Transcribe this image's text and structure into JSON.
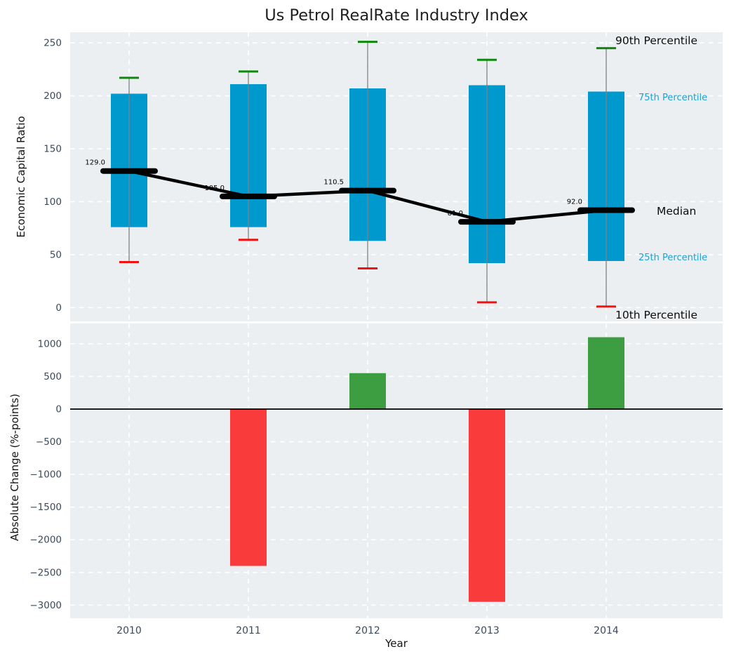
{
  "title": "Us Petrol RealRate Industry Index",
  "colors": {
    "figure_bg": "#ffffff",
    "panel_bg": "#eceff1",
    "grid": "#ffffff",
    "box_fill": "#0099cd",
    "whisker": "#808080",
    "cap_top": "#0b8a0b",
    "cap_bottom": "#f21212",
    "median": "#000000",
    "bar_positive": "#3d9e41",
    "bar_negative": "#fa3b3b",
    "tick_label": "#3b4a5c",
    "accent_label": "#1ba2d4",
    "zero_line": "#000000"
  },
  "chart_data": [
    {
      "type": "boxplot",
      "title": "Us Petrol RealRate Industry Index",
      "ylabel": "Economic Capital Ratio",
      "categories": [
        "2010",
        "2011",
        "2012",
        "2013",
        "2014"
      ],
      "series": [
        {
          "name": "90th Percentile",
          "values": [
            217,
            223,
            251,
            234,
            245
          ]
        },
        {
          "name": "75th Percentile",
          "values": [
            202,
            211,
            207,
            210,
            204
          ]
        },
        {
          "name": "Median",
          "values": [
            129.0,
            105.0,
            110.5,
            81.0,
            92.0
          ]
        },
        {
          "name": "25th Percentile",
          "values": [
            76,
            76,
            63,
            42,
            44
          ]
        },
        {
          "name": "10th Percentile",
          "values": [
            43,
            64,
            37,
            5,
            1
          ]
        }
      ],
      "median_labels": [
        "129.0",
        "105.0",
        "110.5",
        "81.0",
        "92.0"
      ],
      "yticks": [
        0,
        50,
        100,
        150,
        200,
        250
      ],
      "ylim": [
        -13,
        260
      ],
      "grid": true,
      "legend_annotations": [
        {
          "label": "90th Percentile",
          "y_value": 252,
          "style": "black-large",
          "x": 877
        },
        {
          "label": "75th Percentile",
          "y_value": 199,
          "style": "accent-small",
          "x": 910
        },
        {
          "label": "Median",
          "y_value": 91,
          "style": "black-large",
          "x": 936
        },
        {
          "label": "25th Percentile",
          "y_value": 48,
          "style": "accent-small",
          "x": 910
        },
        {
          "label": "10th Percentile",
          "y_value": -7,
          "style": "black-large",
          "x": 877
        }
      ]
    },
    {
      "type": "bar",
      "xlabel": "Year",
      "ylabel": "Absolute Change (%-points)",
      "categories": [
        "2010",
        "2011",
        "2012",
        "2013",
        "2014"
      ],
      "values": [
        0,
        -2400,
        550,
        -2950,
        1100
      ],
      "yticks": [
        1000,
        500,
        0,
        -500,
        -1000,
        -1500,
        -2000,
        -2500,
        -3000
      ],
      "ylim": [
        -3200,
        1310
      ],
      "grid": true,
      "legend_position": "none"
    }
  ]
}
